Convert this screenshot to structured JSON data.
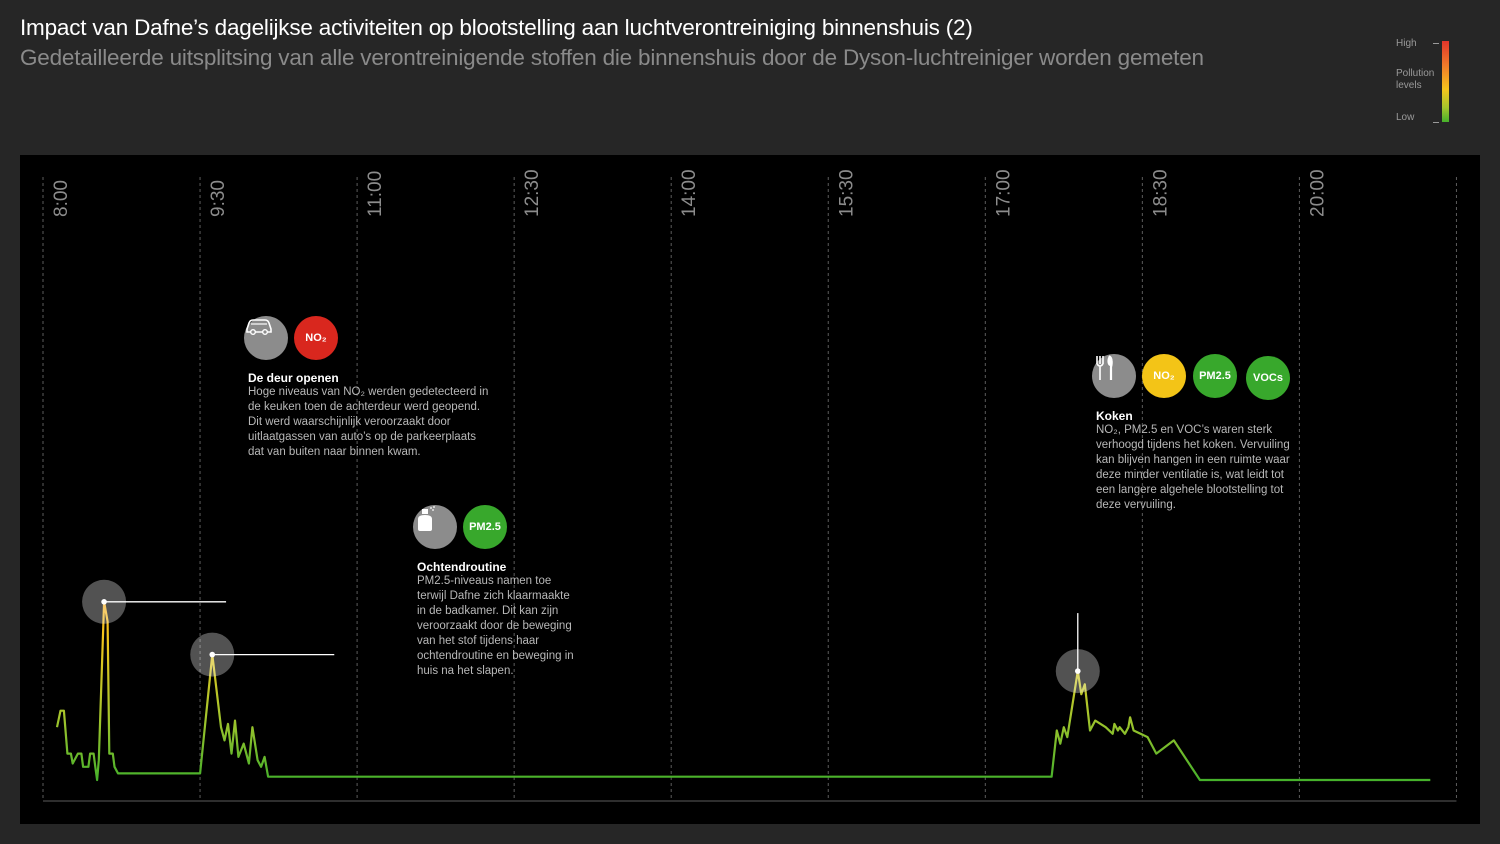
{
  "header": {
    "title": "Impact van Dafne’s dagelijkse activiteiten op blootstelling aan luchtverontreiniging binnenshuis (2)",
    "subtitle": "Gedetailleerde uitsplitsing van alle verontreinigende stoffen die binnenshuis door de Dyson-luchtreiniger worden gemeten"
  },
  "legend": {
    "high": "High",
    "label": "Pollution levels",
    "low": "Low",
    "colors": [
      "#e0352b",
      "#f07a2a",
      "#f5c51c",
      "#a6c52c",
      "#46b12b"
    ]
  },
  "chart_data": {
    "type": "line",
    "title": "Impact van Dafne’s dagelijkse activiteiten op blootstelling aan luchtverontreiniging binnenshuis (2)",
    "subtitle": "Gedetailleerde uitsplitsing van alle verontreinigende stoffen die binnenshuis door de Dyson-luchtreiniger worden gemeten",
    "x_ticks": [
      "8:00",
      "9:30",
      "11:00",
      "12:30",
      "14:00",
      "15:30",
      "17:00",
      "18:30",
      "20:00"
    ],
    "xlim": [
      "8:00",
      "21:30"
    ],
    "ylim": [
      0,
      1
    ],
    "grid": "vertical dashed at x ticks",
    "series": [
      {
        "values": [
          [
            "8:08",
            0.16
          ],
          [
            "8:10",
            0.21
          ],
          [
            "8:12",
            0.21
          ],
          [
            "8:14",
            0.08
          ],
          [
            "8:16",
            0.08
          ],
          [
            "8:17",
            0.05
          ],
          [
            "8:20",
            0.08
          ],
          [
            "8:22",
            0.08
          ],
          [
            "8:23",
            0.04
          ],
          [
            "8:26",
            0.04
          ],
          [
            "8:27",
            0.08
          ],
          [
            "8:29",
            0.08
          ],
          [
            "8:30",
            0.04
          ],
          [
            "8:31",
            0.0
          ],
          [
            "8:32",
            0.06
          ],
          [
            "8:35",
            0.54
          ],
          [
            "8:37",
            0.48
          ],
          [
            "8:38",
            0.08
          ],
          [
            "8:40",
            0.08
          ],
          [
            "8:41",
            0.04
          ],
          [
            "8:43",
            0.02
          ],
          [
            "9:30",
            0.02
          ],
          [
            "9:37",
            0.38
          ],
          [
            "9:42",
            0.16
          ],
          [
            "9:44",
            0.12
          ],
          [
            "9:46",
            0.17
          ],
          [
            "9:48",
            0.08
          ],
          [
            "9:50",
            0.18
          ],
          [
            "9:52",
            0.07
          ],
          [
            "9:55",
            0.11
          ],
          [
            "9:58",
            0.05
          ],
          [
            "10:00",
            0.16
          ],
          [
            "10:03",
            0.06
          ],
          [
            "10:05",
            0.04
          ],
          [
            "10:07",
            0.07
          ],
          [
            "10:09",
            0.01
          ],
          [
            "10:10",
            0.01
          ],
          [
            "17:38",
            0.01
          ],
          [
            "17:41",
            0.15
          ],
          [
            "17:43",
            0.11
          ],
          [
            "17:45",
            0.16
          ],
          [
            "17:47",
            0.13
          ],
          [
            "17:53",
            0.33
          ],
          [
            "17:55",
            0.26
          ],
          [
            "17:57",
            0.29
          ],
          [
            "18:00",
            0.15
          ],
          [
            "18:03",
            0.18
          ],
          [
            "18:09",
            0.16
          ],
          [
            "18:13",
            0.14
          ],
          [
            "18:14",
            0.17
          ],
          [
            "18:16",
            0.15
          ],
          [
            "18:17",
            0.16
          ],
          [
            "18:20",
            0.14
          ],
          [
            "18:22",
            0.16
          ],
          [
            "18:23",
            0.19
          ],
          [
            "18:25",
            0.15
          ],
          [
            "18:33",
            0.13
          ],
          [
            "18:38",
            0.08
          ],
          [
            "18:48",
            0.12
          ],
          [
            "19:03",
            0.0
          ],
          [
            "21:15",
            0.0
          ]
        ]
      }
    ],
    "annotations": [
      {
        "time": "8:35",
        "title": "De deur openen",
        "body": "Hoge niveaus van NO₂ werden gedetecteerd in de keuken toen de achterdeur werd geopend. Dit werd waarschijnlijk veroorzaakt door uitlaatgassen van  auto’s op de parkeerplaats dat van buiten naar binnen kwam.",
        "badges": [
          "car-icon",
          "NO₂"
        ]
      },
      {
        "time": "9:37",
        "title": "Ochtendroutine",
        "body": "PM2.5-niveaus namen toe terwijl Dafne zich klaarmaakte in de badkamer. Dit kan zijn veroorzaakt door de beweging van het stof tijdens haar ochtendroutine en beweging in huis na het slapen.",
        "badges": [
          "spray-bottle-icon",
          "PM2.5"
        ]
      },
      {
        "time": "17:53",
        "title": "Koken",
        "body": "NO₂, PM2.5 en VOC’s waren sterk verhoogd tijdens het koken. Vervuiling kan blijven hangen in een ruimte waar deze minder ventilatie is, wat leidt tot een langere algehele blootstelling tot deze vervuiling.",
        "badges": [
          "cutlery-icon",
          "NO₂",
          "PM2.5",
          "VOCs"
        ]
      }
    ]
  },
  "annotations": {
    "door": {
      "title": "De deur openen",
      "body_lines": [
        "Hoge niveaus van NO₂ werden gedetecteerd in",
        "de keuken toen de achterdeur werd geopend.",
        "Dit werd waarschijnlijk veroorzaakt door",
        "uitlaatgassen van  auto’s op de parkeerplaats",
        "dat van buiten naar binnen kwam."
      ],
      "badge_no2": "NO₂"
    },
    "morning": {
      "title": "Ochtendroutine",
      "body_lines": [
        "PM2.5-niveaus namen toe",
        "terwijl Dafne zich klaarmaakte",
        "in de badkamer. Dit kan zijn",
        "veroorzaakt door de beweging",
        "van het stof tijdens haar",
        "ochtendroutine en beweging in",
        "huis na het slapen."
      ],
      "badge_pm": "PM2.5"
    },
    "cooking": {
      "title": "Koken",
      "body_lines": [
        "NO₂, PM2.5 en VOC’s waren sterk",
        "verhoogd tijdens het koken. Vervuiling",
        "kan blijven hangen in een ruimte waar",
        "deze minder ventilatie is, wat leidt tot",
        "een langere algehele blootstelling tot",
        "deze vervuiling."
      ],
      "badge_no2": "NO₂",
      "badge_pm": "PM2.5",
      "badge_voc": "VOCs"
    }
  }
}
